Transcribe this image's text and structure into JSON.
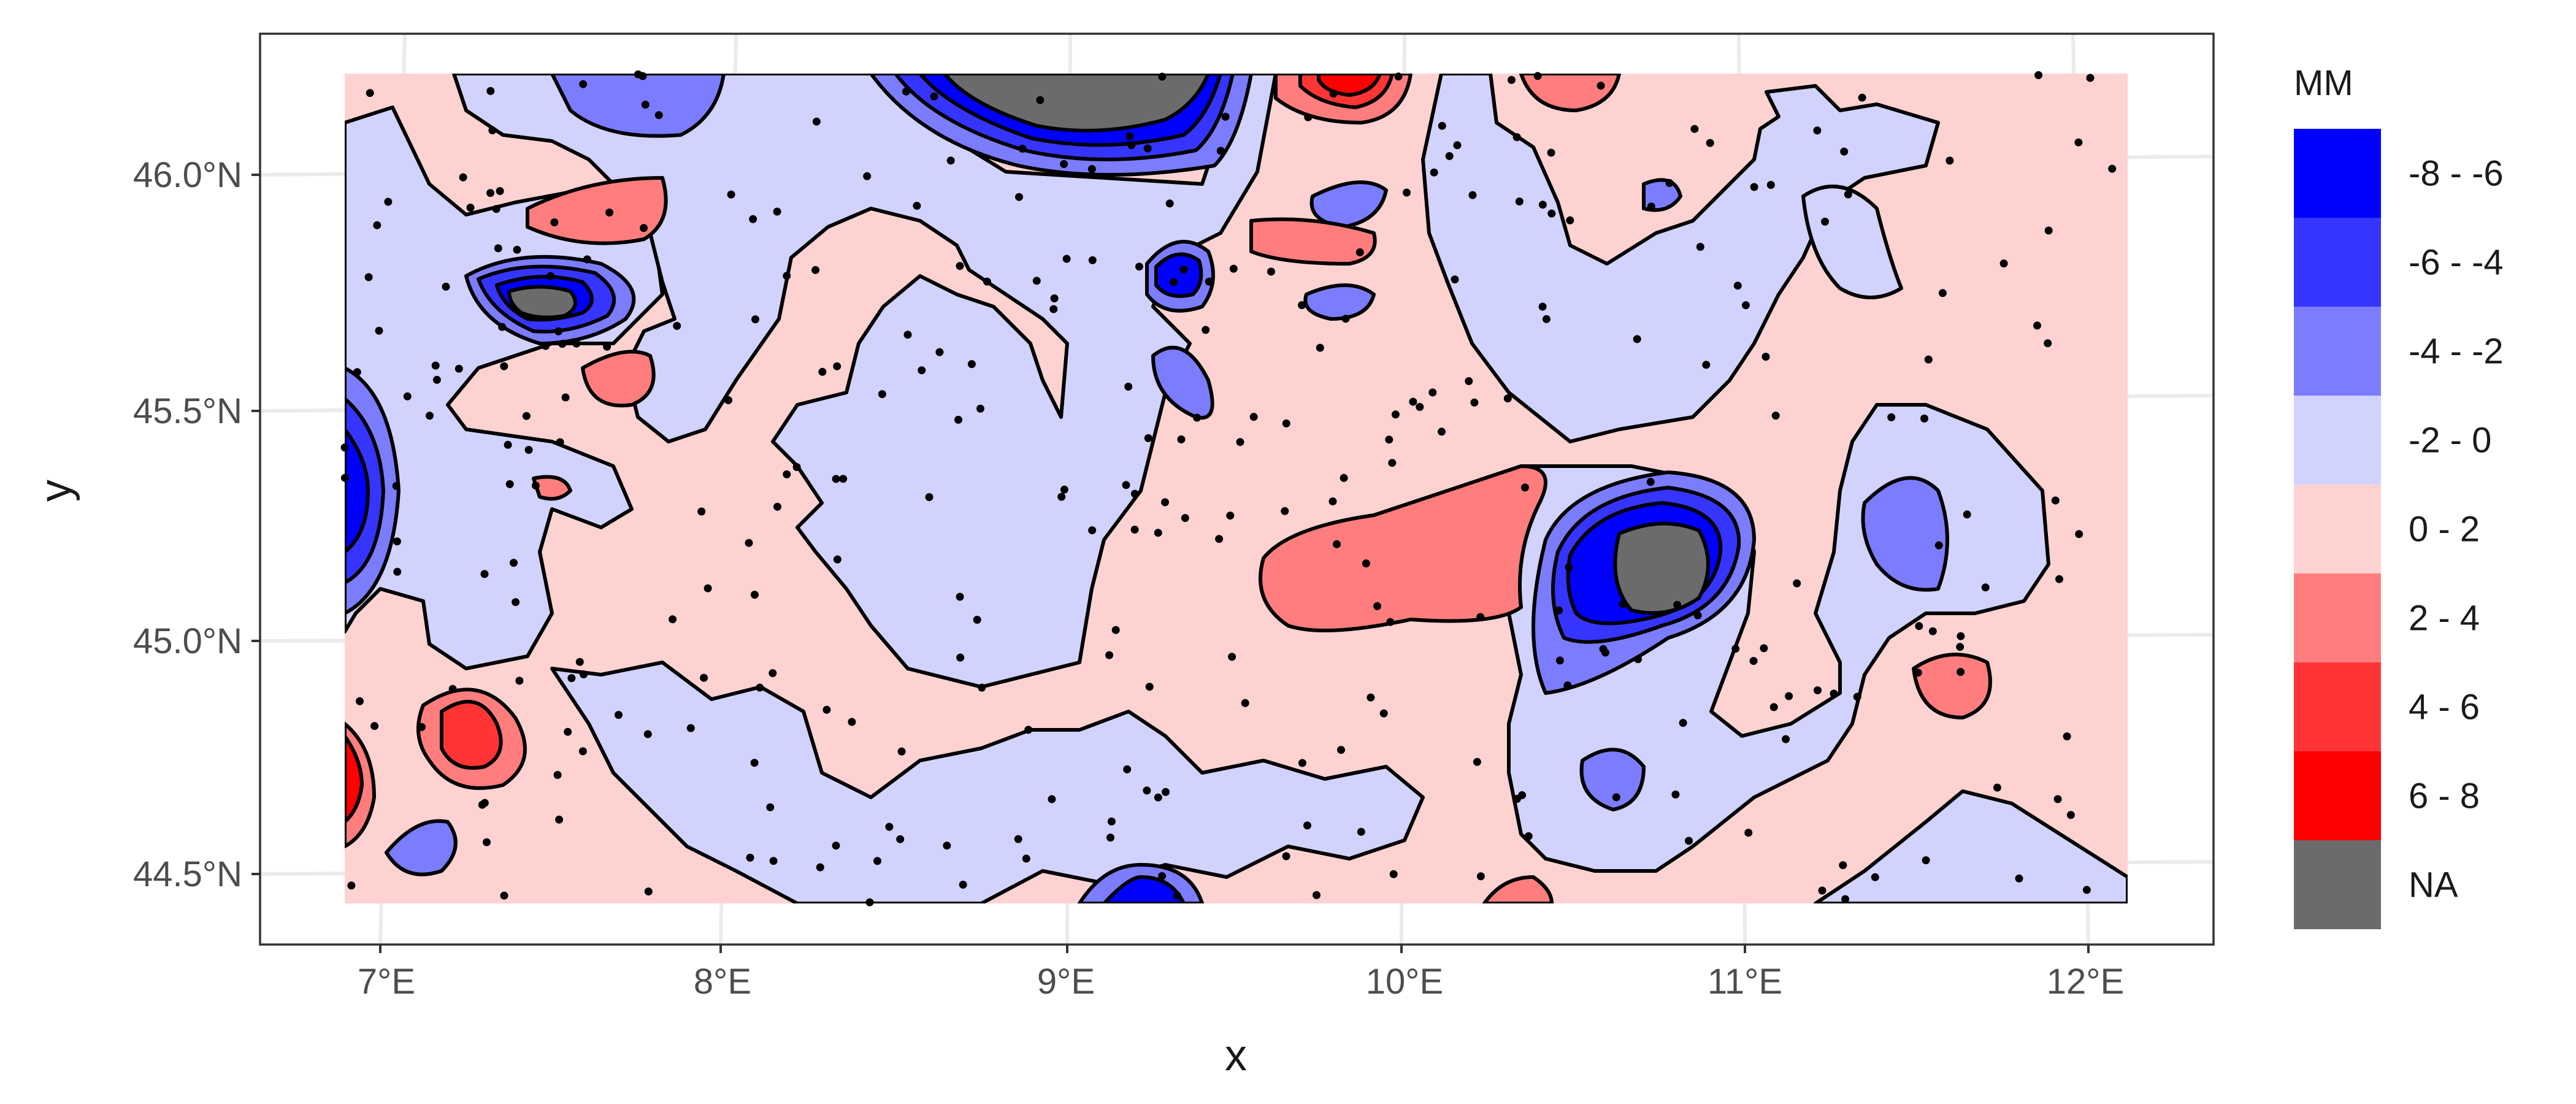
{
  "chart_data": {
    "type": "contour",
    "xlabel": "x",
    "ylabel": "y",
    "x_ticks": [
      "7°E",
      "8°E",
      "9°E",
      "10°E",
      "11°E",
      "12°E"
    ],
    "x_tick_values": [
      7,
      8,
      9,
      10,
      11,
      12
    ],
    "y_ticks": [
      "44.5°N",
      "45.0°N",
      "45.5°N",
      "46.0°N"
    ],
    "y_tick_values": [
      44.5,
      45.0,
      45.5,
      46.0
    ],
    "xlim": [
      6.63,
      12.5
    ],
    "ylim": [
      44.37,
      46.31
    ],
    "data_extent": {
      "x": [
        6.89,
        12.24
      ],
      "y": [
        44.43,
        46.22
      ]
    },
    "grid": true,
    "legend": {
      "title": "MM",
      "position": "right",
      "entries": [
        {
          "label": "-8 - -6",
          "color": "#0000ff"
        },
        {
          "label": "-6 - -4",
          "color": "#3535ff"
        },
        {
          "label": "-4 - -2",
          "color": "#7c7cff"
        },
        {
          "label": "-2 - 0",
          "color": "#d2d2ff"
        },
        {
          "label": "0 - 2",
          "color": "#ffd2d2"
        },
        {
          "label": "2 - 4",
          "color": "#ff7d7d"
        },
        {
          "label": "4 - 6",
          "color": "#ff3535"
        },
        {
          "label": "6 - 8",
          "color": "#ff0000"
        },
        {
          "label": "NA",
          "color": "#6b6b6b"
        }
      ]
    },
    "features": [
      {
        "kind": "na",
        "cx": 9.18,
        "cy": 46.23,
        "rx": 0.55,
        "ry": 0.16,
        "level": "NA"
      },
      {
        "kind": "na",
        "cx": 10.8,
        "cy": 45.16,
        "rx": 0.18,
        "ry": 0.12,
        "level": "NA"
      },
      {
        "kind": "na",
        "cx": 7.48,
        "cy": 45.72,
        "rx": 0.11,
        "ry": 0.045,
        "level": "NA"
      },
      {
        "kind": "low",
        "cx": 10.8,
        "cy": 45.16,
        "rx": 0.34,
        "ry": 0.3,
        "min": -8
      },
      {
        "kind": "low",
        "cx": 7.48,
        "cy": 45.72,
        "rx": 0.28,
        "ry": 0.11,
        "min": -8
      },
      {
        "kind": "low",
        "cx": 6.92,
        "cy": 45.3,
        "rx": 0.08,
        "ry": 0.22,
        "min": -8
      },
      {
        "kind": "low",
        "cx": 9.28,
        "cy": 44.45,
        "rx": 0.16,
        "ry": 0.05,
        "min": -8
      },
      {
        "kind": "low",
        "cx": 9.38,
        "cy": 45.81,
        "rx": 0.07,
        "ry": 0.06,
        "min": -6
      },
      {
        "kind": "low",
        "cx": 11.5,
        "cy": 45.22,
        "rx": 0.08,
        "ry": 0.12,
        "min": -4
      },
      {
        "kind": "high",
        "cx": 7.25,
        "cy": 44.79,
        "rx": 0.13,
        "ry": 0.09,
        "max": 6
      },
      {
        "kind": "high",
        "cx": 9.84,
        "cy": 46.18,
        "rx": 0.13,
        "ry": 0.06,
        "max": 6
      },
      {
        "kind": "high",
        "cx": 10.56,
        "cy": 45.15,
        "rx": 0.42,
        "ry": 0.15,
        "max": 4
      },
      {
        "kind": "high",
        "cx": 6.92,
        "cy": 44.75,
        "rx": 0.04,
        "ry": 0.1,
        "max": 6
      }
    ]
  }
}
